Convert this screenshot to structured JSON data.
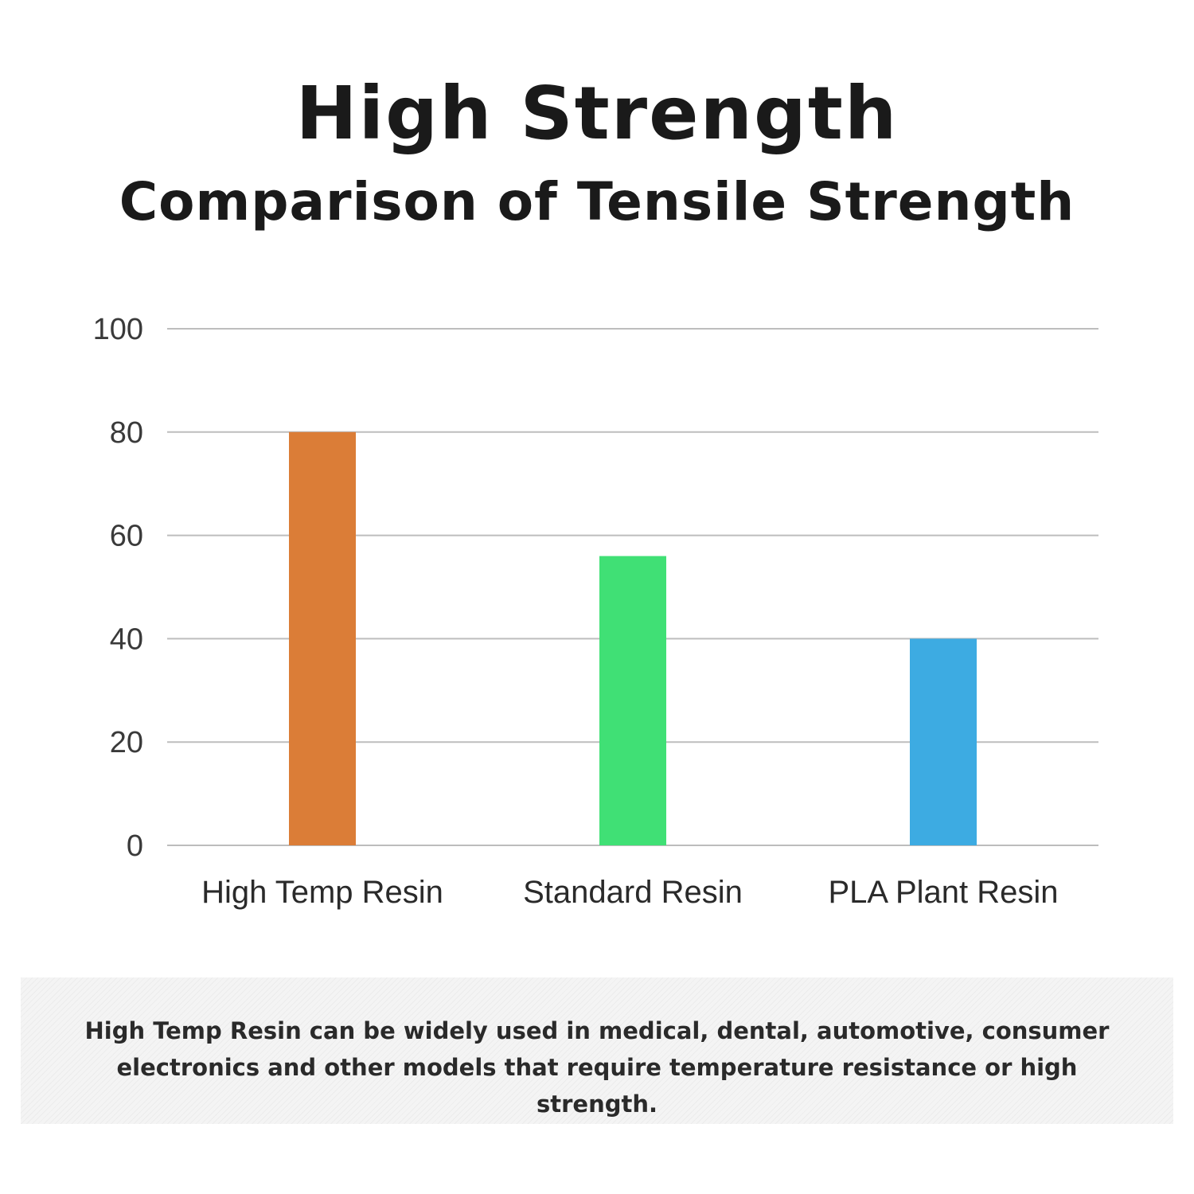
{
  "header": {
    "title": "High Strength",
    "subtitle": "Comparison of Tensile Strength"
  },
  "chart_data": {
    "type": "bar",
    "title": "Comparison of Tensile Strength",
    "xlabel": "",
    "ylabel": "",
    "categories": [
      "High Temp Resin",
      "Standard Resin",
      "PLA Plant Resin"
    ],
    "values": [
      80,
      56,
      40
    ],
    "colors": [
      "#DB7D37",
      "#40E075",
      "#3DABE2"
    ],
    "ylim": [
      0,
      100
    ],
    "yticks": [
      0,
      20,
      40,
      60,
      80,
      100
    ],
    "grid": true,
    "gridColor": "#bdbdbd"
  },
  "note": {
    "text": "High Temp Resin can be widely used in medical, dental, automotive, consumer electronics and other models that require temperature resistance or high strength."
  }
}
